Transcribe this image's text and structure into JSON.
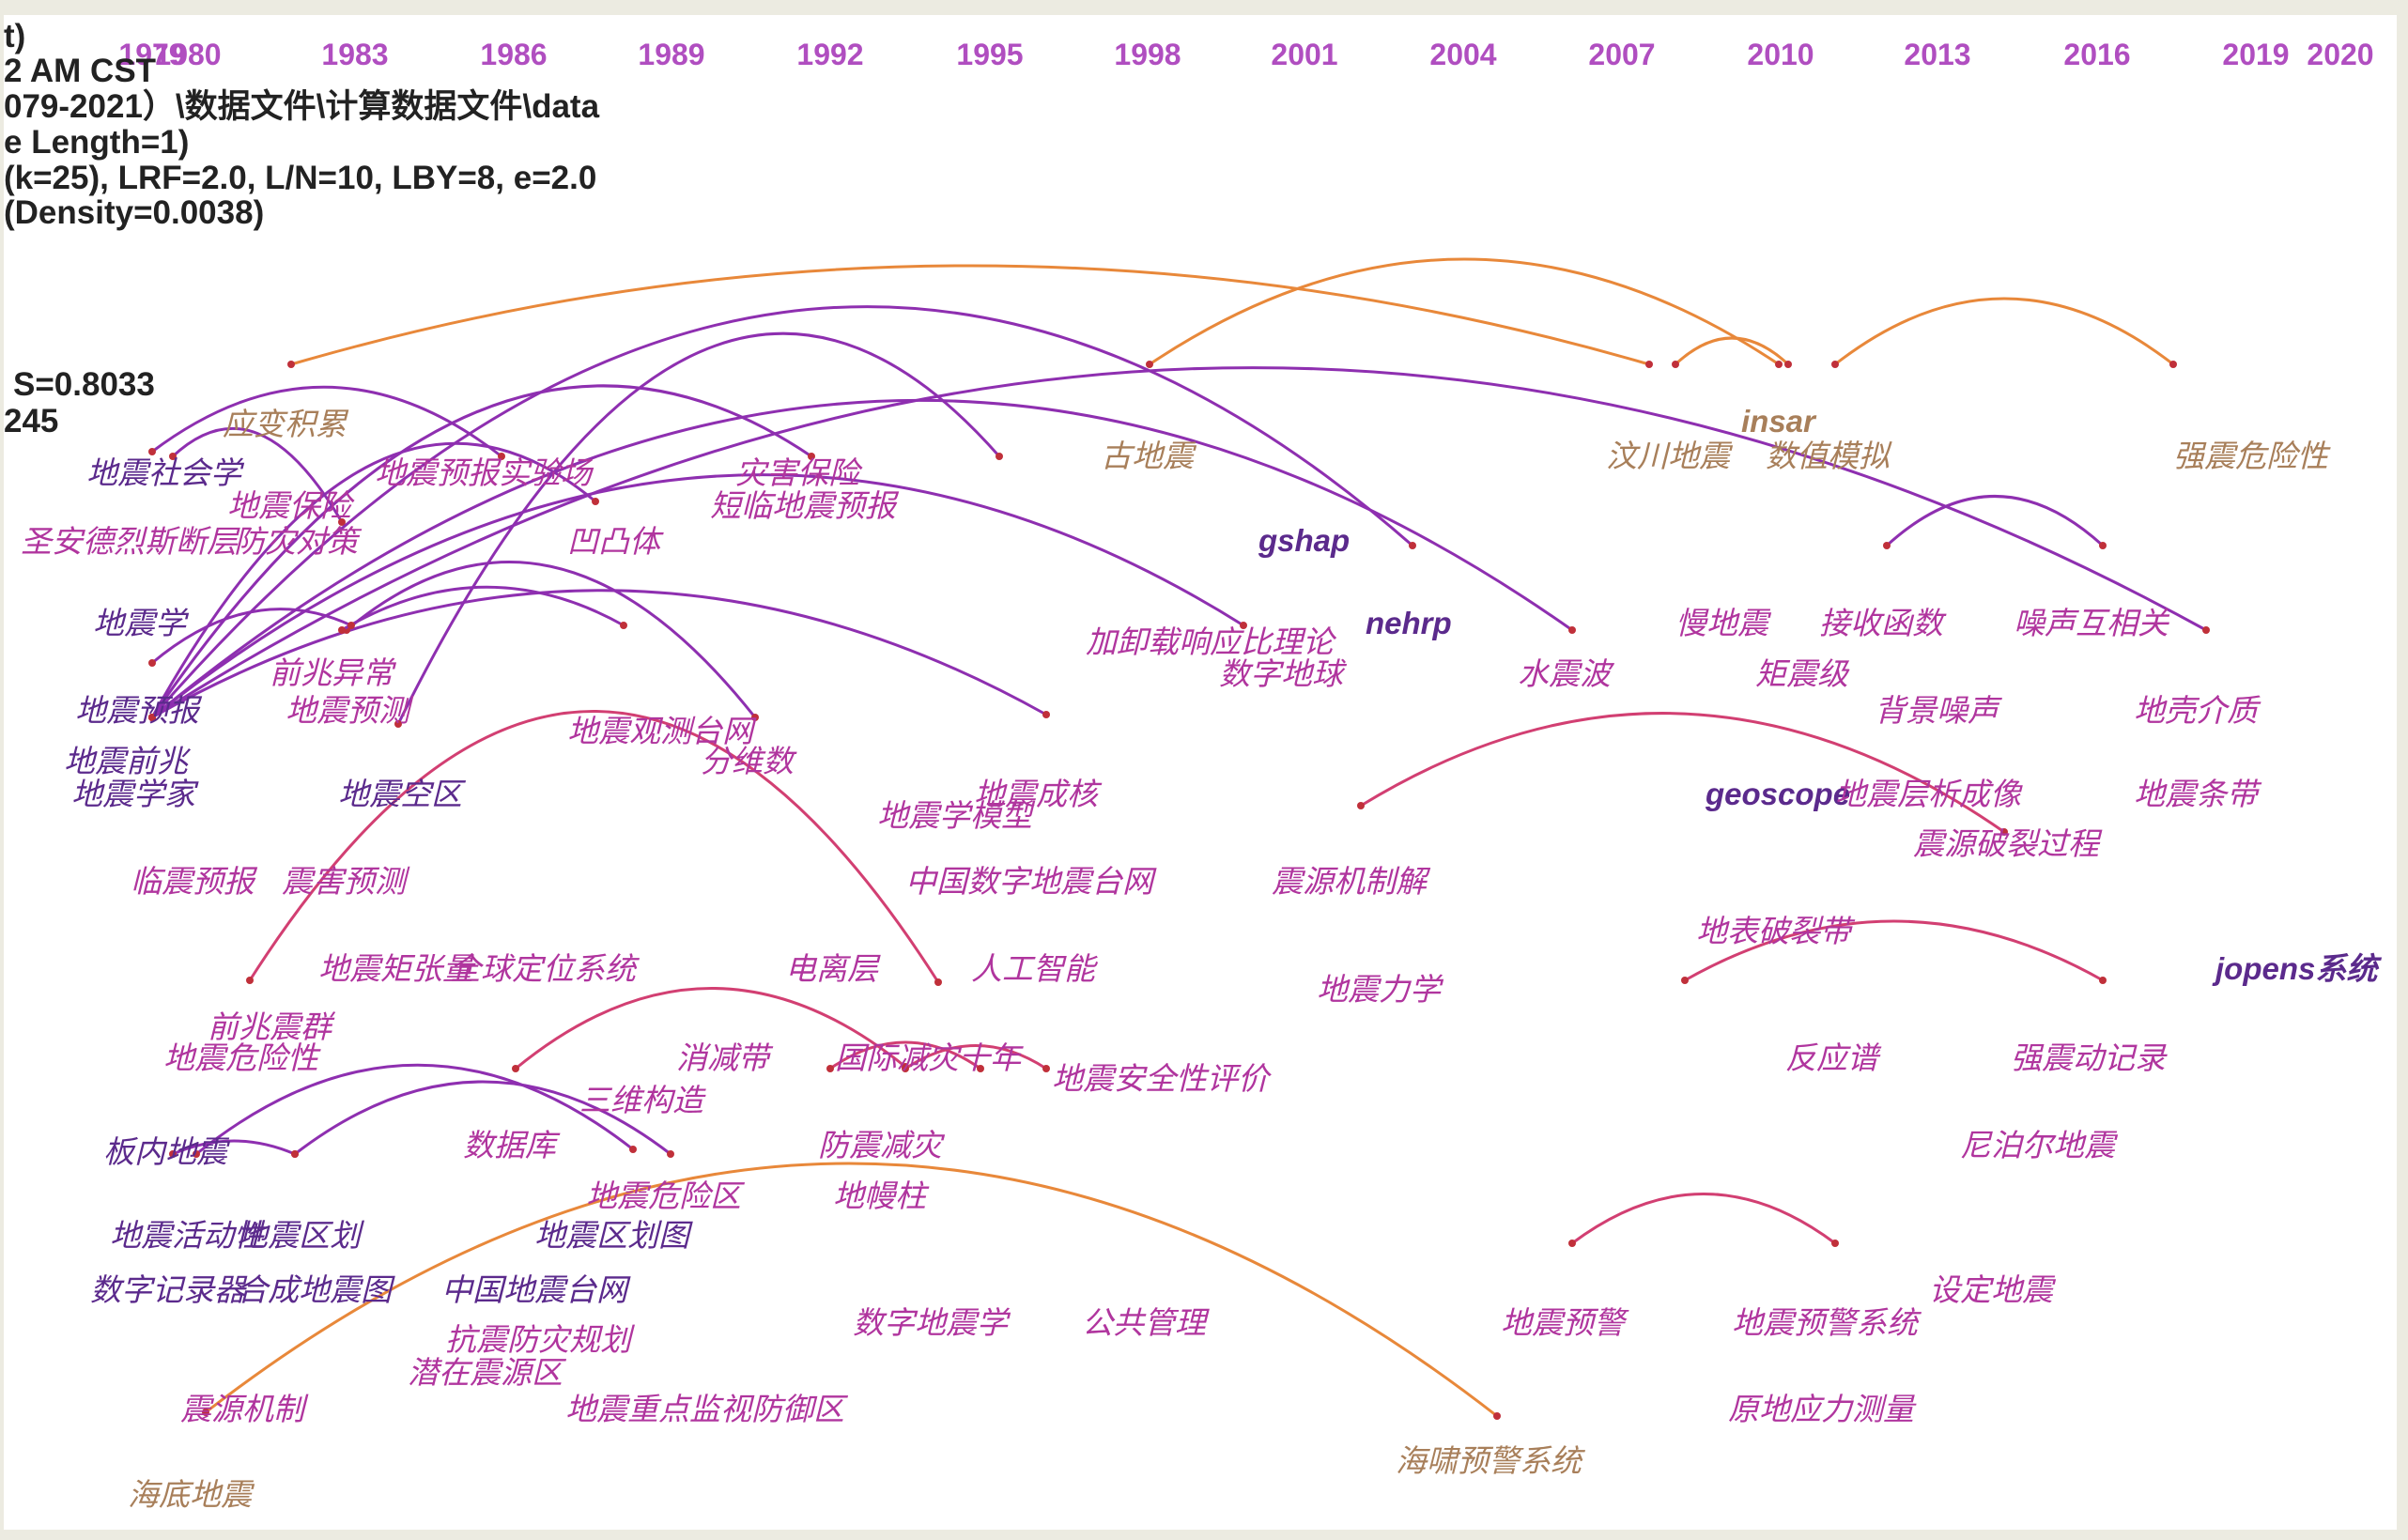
{
  "colors": {
    "year": "#b04ec0",
    "purple": "#8a2ea8",
    "violet": "#5b2a8c",
    "magenta": "#b0359e",
    "pink": "#cc3f6e",
    "orange": "#e48a3c",
    "tan": "#a87f5a"
  },
  "timeline": [
    "1979",
    "1980",
    "1983",
    "1986",
    "1989",
    "1992",
    "1995",
    "1998",
    "2001",
    "2004",
    "2007",
    "2010",
    "2013",
    "2016",
    "2019",
    "2020"
  ],
  "info": {
    "l1": "t)",
    "l2": "2 AM CST",
    "l3": "079-2021）\\数据文件\\计算数据文件\\data",
    "l4": "e Length=1)",
    "l5": "(k=25), LRF=2.0, L/N=10, LBY=8, e=2.0",
    "l6": "(Density=0.0038)",
    "l7": "S=0.8033",
    "l8": "245"
  },
  "keywords": [
    {
      "t": "应变积累",
      "c": "tan"
    },
    {
      "t": "地震社会学",
      "c": "violet"
    },
    {
      "t": "地震预报实验场",
      "c": "magenta"
    },
    {
      "t": "地震保险",
      "c": "magenta"
    },
    {
      "t": "圣安德烈斯断层",
      "c": "magenta"
    },
    {
      "t": "防灾对策",
      "c": "magenta"
    },
    {
      "t": "灾害保险",
      "c": "magenta"
    },
    {
      "t": "短临地震预报",
      "c": "magenta"
    },
    {
      "t": "凹凸体",
      "c": "magenta"
    },
    {
      "t": "古地震",
      "c": "tan"
    },
    {
      "t": "汶川地震",
      "c": "tan"
    },
    {
      "t": "数值模拟",
      "c": "tan"
    },
    {
      "t": "insar",
      "c": "tan",
      "en": true
    },
    {
      "t": "强震危险性",
      "c": "tan"
    },
    {
      "t": "gshap",
      "c": "violet",
      "en": true
    },
    {
      "t": "nehrp",
      "c": "violet",
      "en": true
    },
    {
      "t": "地震学",
      "c": "violet"
    },
    {
      "t": "加卸载响应比理论",
      "c": "magenta"
    },
    {
      "t": "慢地震",
      "c": "magenta"
    },
    {
      "t": "接收函数",
      "c": "magenta"
    },
    {
      "t": "噪声互相关",
      "c": "magenta"
    },
    {
      "t": "前兆异常",
      "c": "magenta"
    },
    {
      "t": "数字地球",
      "c": "magenta"
    },
    {
      "t": "水震波",
      "c": "magenta"
    },
    {
      "t": "矩震级",
      "c": "magenta"
    },
    {
      "t": "地震预报",
      "c": "violet"
    },
    {
      "t": "地震预测",
      "c": "magenta"
    },
    {
      "t": "背景噪声",
      "c": "magenta"
    },
    {
      "t": "地壳介质",
      "c": "magenta"
    },
    {
      "t": "地震观测台网",
      "c": "magenta"
    },
    {
      "t": "地震前兆",
      "c": "violet"
    },
    {
      "t": "分维数",
      "c": "magenta"
    },
    {
      "t": "地震学家",
      "c": "violet"
    },
    {
      "t": "地震空区",
      "c": "violet"
    },
    {
      "t": "地震成核",
      "c": "magenta"
    },
    {
      "t": "地震学模型",
      "c": "magenta"
    },
    {
      "t": "geoscope",
      "c": "violet",
      "en": true
    },
    {
      "t": "地震层析成像",
      "c": "magenta"
    },
    {
      "t": "地震条带",
      "c": "magenta"
    },
    {
      "t": "震源破裂过程",
      "c": "magenta"
    },
    {
      "t": "临震预报",
      "c": "magenta"
    },
    {
      "t": "震害预测",
      "c": "magenta"
    },
    {
      "t": "中国数字地震台网",
      "c": "magenta"
    },
    {
      "t": "震源机制解",
      "c": "magenta"
    },
    {
      "t": "地表破裂带",
      "c": "magenta"
    },
    {
      "t": "地震矩张量",
      "c": "magenta"
    },
    {
      "t": "全球定位系统",
      "c": "magenta"
    },
    {
      "t": "电离层",
      "c": "magenta"
    },
    {
      "t": "人工智能",
      "c": "magenta"
    },
    {
      "t": "jopens系统",
      "c": "violet",
      "en": true
    },
    {
      "t": "地震力学",
      "c": "magenta"
    },
    {
      "t": "前兆震群",
      "c": "magenta"
    },
    {
      "t": "地震危险性",
      "c": "magenta"
    },
    {
      "t": "消减带",
      "c": "magenta"
    },
    {
      "t": "国际减灾十年",
      "c": "magenta"
    },
    {
      "t": "地震安全性评价",
      "c": "magenta"
    },
    {
      "t": "反应谱",
      "c": "magenta"
    },
    {
      "t": "强震动记录",
      "c": "magenta"
    },
    {
      "t": "三维构造",
      "c": "magenta"
    },
    {
      "t": "板内地震",
      "c": "violet"
    },
    {
      "t": "数据库",
      "c": "magenta"
    },
    {
      "t": "防震减灾",
      "c": "magenta"
    },
    {
      "t": "尼泊尔地震",
      "c": "magenta"
    },
    {
      "t": "地震危险区",
      "c": "magenta"
    },
    {
      "t": "地幔柱",
      "c": "magenta"
    },
    {
      "t": "地震活动性",
      "c": "violet"
    },
    {
      "t": "地震区划",
      "c": "violet"
    },
    {
      "t": "地震区划图",
      "c": "violet"
    },
    {
      "t": "数字记录器",
      "c": "violet"
    },
    {
      "t": "合成地震图",
      "c": "violet"
    },
    {
      "t": "中国地震台网",
      "c": "violet"
    },
    {
      "t": "设定地震",
      "c": "magenta"
    },
    {
      "t": "数字地震学",
      "c": "magenta"
    },
    {
      "t": "公共管理",
      "c": "magenta"
    },
    {
      "t": "地震预警",
      "c": "magenta"
    },
    {
      "t": "地震预警系统",
      "c": "magenta"
    },
    {
      "t": "抗震防灾规划",
      "c": "magenta"
    },
    {
      "t": "潜在震源区",
      "c": "magenta"
    },
    {
      "t": "震源机制",
      "c": "magenta"
    },
    {
      "t": "地震重点监视防御区",
      "c": "magenta"
    },
    {
      "t": "原地应力测量",
      "c": "magenta"
    },
    {
      "t": "海啸预警系统",
      "c": "tan"
    },
    {
      "t": "海底地震",
      "c": "tan"
    }
  ]
}
